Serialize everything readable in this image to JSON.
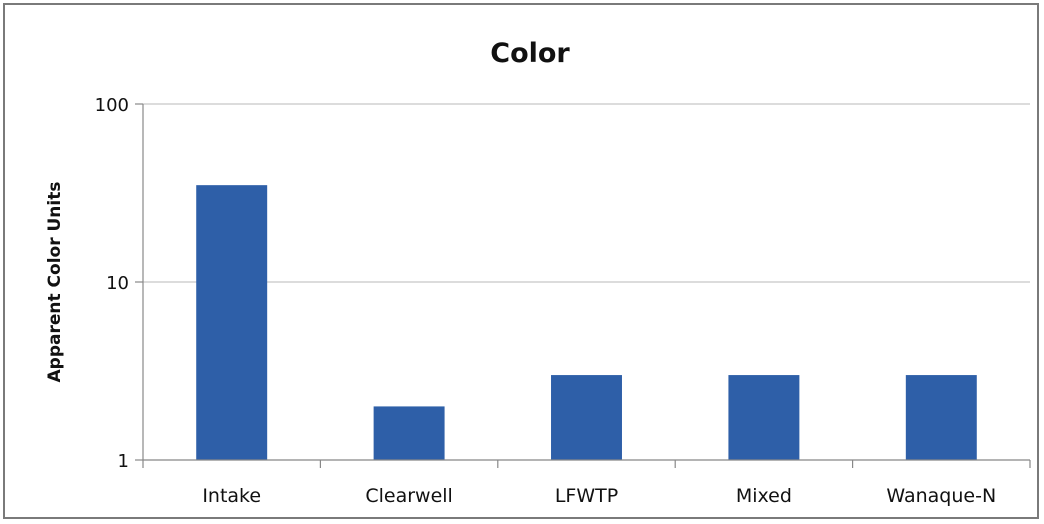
{
  "chart_data": {
    "type": "bar",
    "title": "Color",
    "xlabel": "",
    "ylabel": "Apparent Color Units",
    "yscale": "log",
    "ylim": [
      1,
      100
    ],
    "yticks": [
      1,
      10,
      100
    ],
    "ytick_labels": [
      "1",
      "10",
      "100"
    ],
    "categories": [
      "Intake",
      "Clearwell",
      "LFWTP",
      "Mixed",
      "Wanaque-N"
    ],
    "values": [
      35,
      2,
      3,
      3,
      3
    ],
    "grid": true,
    "legend": "none",
    "bar_color": "#2e5fa8"
  }
}
